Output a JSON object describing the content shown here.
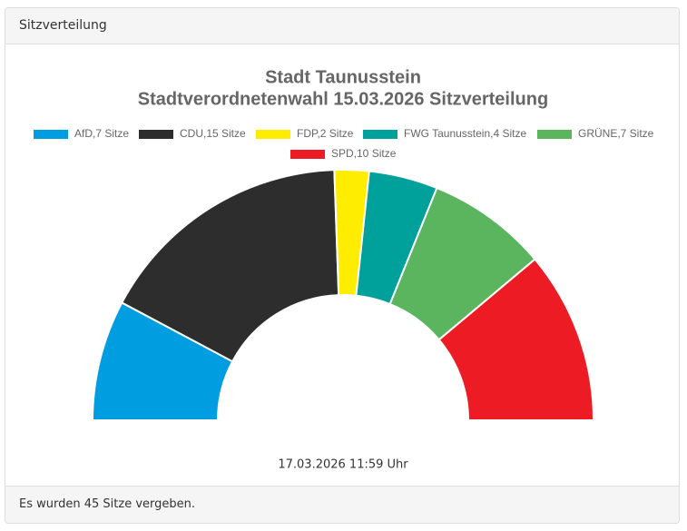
{
  "panel": {
    "header": "Sitzverteilung",
    "footer": "Es wurden 45 Sitze vergeben."
  },
  "chart_data": {
    "type": "semi-donut",
    "title": [
      "Stadt Taunusstein",
      "Stadtverordnetenwahl 15.03.2026 Sitzverteilung"
    ],
    "categories": [
      "AfD,7 Sitze",
      "CDU,15 Sitze",
      "FDP,2 Sitze",
      "FWG Taunusstein,4 Sitze",
      "GRÜNE,7 Sitze",
      "SPD,10 Sitze"
    ],
    "values": [
      7,
      15,
      2,
      4,
      7,
      10
    ],
    "colors": [
      "#009ee0",
      "#2d2d2d",
      "#ffed00",
      "#00a19a",
      "#5ab55e",
      "#ed1c24"
    ],
    "subtitle": "17.03.2026 11:59 Uhr"
  }
}
